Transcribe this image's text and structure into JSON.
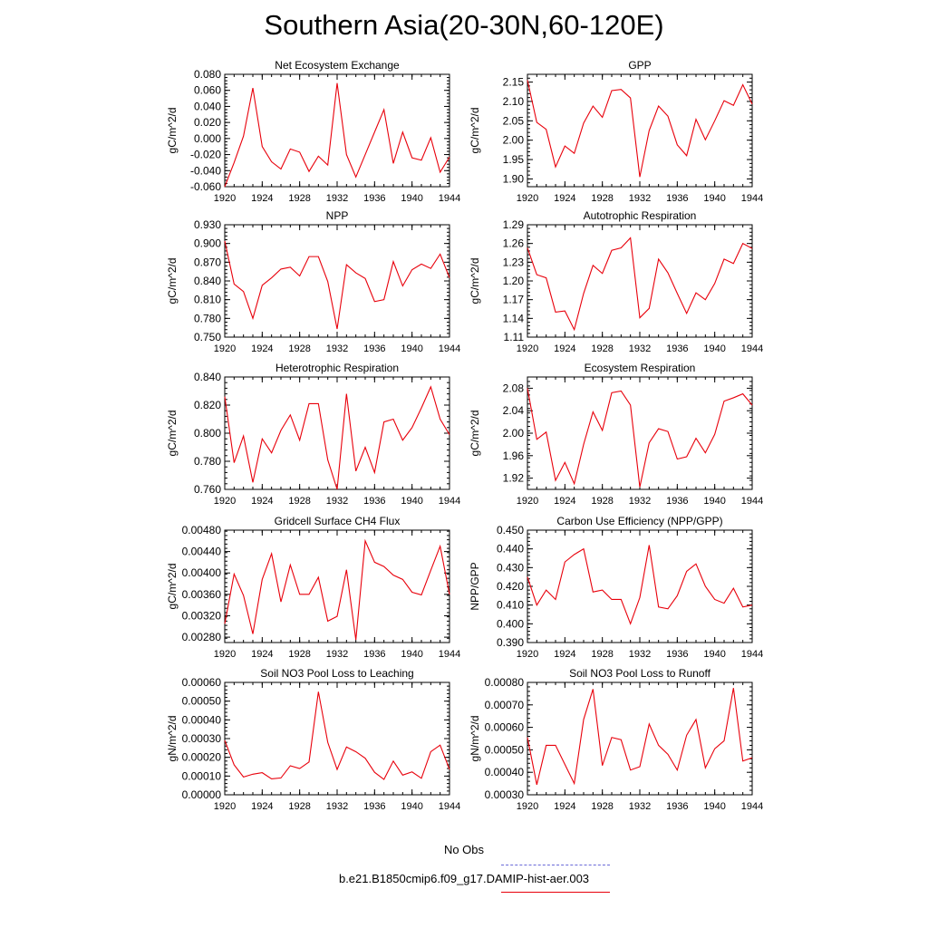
{
  "title": "Southern Asia(20-30N,60-120E)",
  "colors": {
    "model": "#e8000b",
    "obs": "#6a6ad8",
    "axis": "#000000"
  },
  "legend": {
    "obs_label": "No Obs",
    "model_label": "b.e21.B1850cmip6.f09_g17.DAMIP-hist-aer.003"
  },
  "chart_data": [
    {
      "type": "line",
      "title": "Net Ecosystem Exchange",
      "xlabel": "",
      "ylabel": "gC/m^2/d",
      "xlim": [
        1920,
        1944
      ],
      "ylim": [
        -0.06,
        0.08
      ],
      "xticks": [
        "1920",
        "1924",
        "1928",
        "1932",
        "1936",
        "1940",
        "1944"
      ],
      "yticks": [
        "-0.060",
        "-0.040",
        "-0.020",
        "0.000",
        "0.020",
        "0.040",
        "0.060",
        "0.080"
      ],
      "series": [
        {
          "x": [
            1920,
            1921,
            1922,
            1923,
            1924,
            1925,
            1926,
            1927,
            1928,
            1929,
            1930,
            1931,
            1932,
            1933,
            1934,
            1935,
            1936,
            1937,
            1938,
            1939,
            1940,
            1941,
            1942,
            1943,
            1944
          ],
          "values": [
            -0.06,
            -0.03,
            0.003,
            0.063,
            -0.01,
            -0.029,
            -0.038,
            -0.013,
            -0.017,
            -0.041,
            -0.022,
            -0.033,
            0.069,
            -0.02,
            -0.048,
            -0.02,
            0.008,
            0.036,
            -0.031,
            0.008,
            -0.024,
            -0.027,
            0.001,
            -0.042,
            -0.023
          ]
        }
      ]
    },
    {
      "type": "line",
      "title": "GPP",
      "xlabel": "",
      "ylabel": "gC/m^2/d",
      "xlim": [
        1920,
        1944
      ],
      "ylim": [
        1.88,
        2.17
      ],
      "xticks": [
        "1920",
        "1924",
        "1928",
        "1932",
        "1936",
        "1940",
        "1944"
      ],
      "yticks": [
        "1.90",
        "1.95",
        "2.00",
        "2.05",
        "2.10",
        "2.15"
      ],
      "series": [
        {
          "x": [
            1920,
            1921,
            1922,
            1923,
            1924,
            1925,
            1926,
            1927,
            1928,
            1929,
            1930,
            1931,
            1932,
            1933,
            1934,
            1935,
            1936,
            1937,
            1938,
            1939,
            1940,
            1941,
            1942,
            1943,
            1944
          ],
          "values": [
            2.155,
            2.046,
            2.028,
            1.931,
            1.985,
            1.966,
            2.044,
            2.088,
            2.059,
            2.128,
            2.131,
            2.109,
            1.905,
            2.025,
            2.088,
            2.062,
            1.988,
            1.96,
            2.054,
            2.001,
            2.05,
            2.102,
            2.09,
            2.143,
            2.093
          ]
        }
      ]
    },
    {
      "type": "line",
      "title": "NPP",
      "xlabel": "",
      "ylabel": "gC/m^2/d",
      "xlim": [
        1920,
        1944
      ],
      "ylim": [
        0.75,
        0.93
      ],
      "xticks": [
        "1920",
        "1924",
        "1928",
        "1932",
        "1936",
        "1940",
        "1944"
      ],
      "yticks": [
        "0.750",
        "0.780",
        "0.810",
        "0.840",
        "0.870",
        "0.900",
        "0.930"
      ],
      "series": [
        {
          "x": [
            1920,
            1921,
            1922,
            1923,
            1924,
            1925,
            1926,
            1927,
            1928,
            1929,
            1930,
            1931,
            1932,
            1933,
            1934,
            1935,
            1936,
            1937,
            1938,
            1939,
            1940,
            1941,
            1942,
            1943,
            1944
          ],
          "values": [
            0.904,
            0.835,
            0.823,
            0.78,
            0.833,
            0.845,
            0.859,
            0.862,
            0.848,
            0.879,
            0.879,
            0.839,
            0.763,
            0.866,
            0.853,
            0.844,
            0.807,
            0.81,
            0.871,
            0.832,
            0.858,
            0.867,
            0.86,
            0.883,
            0.845
          ]
        }
      ]
    },
    {
      "type": "line",
      "title": "Autotrophic Respiration",
      "xlabel": "",
      "ylabel": "gC/m^2/d",
      "xlim": [
        1920,
        1944
      ],
      "ylim": [
        1.11,
        1.29
      ],
      "xticks": [
        "1920",
        "1924",
        "1928",
        "1932",
        "1936",
        "1940",
        "1944"
      ],
      "yticks": [
        "1.11",
        "1.14",
        "1.17",
        "1.20",
        "1.23",
        "1.26",
        "1.29"
      ],
      "series": [
        {
          "x": [
            1920,
            1921,
            1922,
            1923,
            1924,
            1925,
            1926,
            1927,
            1928,
            1929,
            1930,
            1931,
            1932,
            1933,
            1934,
            1935,
            1936,
            1937,
            1938,
            1939,
            1940,
            1941,
            1942,
            1943,
            1944
          ],
          "values": [
            1.253,
            1.21,
            1.205,
            1.15,
            1.152,
            1.122,
            1.18,
            1.225,
            1.212,
            1.249,
            1.253,
            1.269,
            1.141,
            1.156,
            1.235,
            1.213,
            1.18,
            1.148,
            1.181,
            1.17,
            1.196,
            1.235,
            1.228,
            1.26,
            1.252
          ]
        }
      ]
    },
    {
      "type": "line",
      "title": "Heterotrophic Respiration",
      "xlabel": "",
      "ylabel": "gC/m^2/d",
      "xlim": [
        1920,
        1944
      ],
      "ylim": [
        0.76,
        0.84
      ],
      "xticks": [
        "1920",
        "1924",
        "1928",
        "1932",
        "1936",
        "1940",
        "1944"
      ],
      "yticks": [
        "0.760",
        "0.780",
        "0.800",
        "0.820",
        "0.840"
      ],
      "series": [
        {
          "x": [
            1920,
            1921,
            1922,
            1923,
            1924,
            1925,
            1926,
            1927,
            1928,
            1929,
            1930,
            1931,
            1932,
            1933,
            1934,
            1935,
            1936,
            1937,
            1938,
            1939,
            1940,
            1941,
            1942,
            1943,
            1944
          ],
          "values": [
            0.826,
            0.779,
            0.798,
            0.765,
            0.796,
            0.786,
            0.802,
            0.813,
            0.795,
            0.821,
            0.821,
            0.781,
            0.76,
            0.828,
            0.773,
            0.79,
            0.772,
            0.808,
            0.81,
            0.795,
            0.804,
            0.818,
            0.833,
            0.81,
            0.799
          ]
        }
      ]
    },
    {
      "type": "line",
      "title": "Ecosystem Respiration",
      "xlabel": "",
      "ylabel": "gC/m^2/d",
      "xlim": [
        1920,
        1944
      ],
      "ylim": [
        1.9,
        2.1
      ],
      "xticks": [
        "1920",
        "1924",
        "1928",
        "1932",
        "1936",
        "1940",
        "1944"
      ],
      "yticks": [
        "1.92",
        "1.96",
        "2.00",
        "2.04",
        "2.08"
      ],
      "series": [
        {
          "x": [
            1920,
            1921,
            1922,
            1923,
            1924,
            1925,
            1926,
            1927,
            1928,
            1929,
            1930,
            1931,
            1932,
            1933,
            1934,
            1935,
            1936,
            1937,
            1938,
            1939,
            1940,
            1941,
            1942,
            1943,
            1944
          ],
          "values": [
            2.08,
            1.989,
            2.002,
            1.916,
            1.948,
            1.91,
            1.98,
            2.038,
            2.005,
            2.072,
            2.075,
            2.05,
            1.904,
            1.983,
            2.008,
            2.003,
            1.954,
            1.958,
            1.991,
            1.965,
            1.998,
            2.057,
            2.063,
            2.07,
            2.05
          ]
        }
      ]
    },
    {
      "type": "line",
      "title": "Gridcell Surface CH4 Flux",
      "xlabel": "",
      "ylabel": "gC/m^2/d",
      "xlim": [
        1920,
        1944
      ],
      "ylim": [
        0.0027,
        0.0048
      ],
      "xticks": [
        "1920",
        "1924",
        "1928",
        "1932",
        "1936",
        "1940",
        "1944"
      ],
      "yticks": [
        "0.00280",
        "0.00320",
        "0.00360",
        "0.00400",
        "0.00440",
        "0.00480"
      ],
      "series": [
        {
          "x": [
            1920,
            1921,
            1922,
            1923,
            1924,
            1925,
            1926,
            1927,
            1928,
            1929,
            1930,
            1931,
            1932,
            1933,
            1934,
            1935,
            1936,
            1937,
            1938,
            1939,
            1940,
            1941,
            1942,
            1943,
            1944
          ],
          "values": [
            0.00305,
            0.00398,
            0.00358,
            0.00286,
            0.00388,
            0.00436,
            0.00346,
            0.00415,
            0.0036,
            0.0036,
            0.00392,
            0.0031,
            0.00319,
            0.00406,
            0.00275,
            0.0046,
            0.0042,
            0.00412,
            0.00396,
            0.00388,
            0.00364,
            0.00359,
            0.00405,
            0.0045,
            0.0036
          ]
        }
      ]
    },
    {
      "type": "line",
      "title": "Carbon Use Efficiency (NPP/GPP)",
      "xlabel": "",
      "ylabel": "NPP/GPP",
      "xlim": [
        1920,
        1944
      ],
      "ylim": [
        0.39,
        0.45
      ],
      "xticks": [
        "1920",
        "1924",
        "1928",
        "1932",
        "1936",
        "1940",
        "1944"
      ],
      "yticks": [
        "0.390",
        "0.400",
        "0.410",
        "0.420",
        "0.430",
        "0.440",
        "0.450"
      ],
      "series": [
        {
          "x": [
            1920,
            1921,
            1922,
            1923,
            1924,
            1925,
            1926,
            1927,
            1928,
            1929,
            1930,
            1931,
            1932,
            1933,
            1934,
            1935,
            1936,
            1937,
            1938,
            1939,
            1940,
            1941,
            1942,
            1943,
            1944
          ],
          "values": [
            0.425,
            0.41,
            0.418,
            0.413,
            0.433,
            0.437,
            0.44,
            0.417,
            0.418,
            0.413,
            0.413,
            0.4,
            0.414,
            0.442,
            0.409,
            0.408,
            0.415,
            0.428,
            0.432,
            0.42,
            0.413,
            0.411,
            0.419,
            0.409,
            0.41
          ]
        }
      ]
    },
    {
      "type": "line",
      "title": "Soil NO3 Pool Loss to Leaching",
      "xlabel": "",
      "ylabel": "gN/m^2/d",
      "xlim": [
        1920,
        1944
      ],
      "ylim": [
        0.0,
        0.0006
      ],
      "xticks": [
        "1920",
        "1924",
        "1928",
        "1932",
        "1936",
        "1940",
        "1944"
      ],
      "yticks": [
        "0.00000",
        "0.00010",
        "0.00020",
        "0.00030",
        "0.00040",
        "0.00050",
        "0.00060"
      ],
      "series": [
        {
          "x": [
            1920,
            1921,
            1922,
            1923,
            1924,
            1925,
            1926,
            1927,
            1928,
            1929,
            1930,
            1931,
            1932,
            1933,
            1934,
            1935,
            1936,
            1937,
            1938,
            1939,
            1940,
            1941,
            1942,
            1943,
            1944
          ],
          "values": [
            0.00029,
            0.00016,
            9.5e-05,
            0.00011,
            0.000118,
            8.5e-05,
            9e-05,
            0.000155,
            0.00014,
            0.000175,
            0.00055,
            0.00028,
            0.000135,
            0.000255,
            0.00023,
            0.000195,
            0.00012,
            8.2e-05,
            0.00018,
            0.000105,
            0.000122,
            8.8e-05,
            0.00023,
            0.000265,
            0.000135
          ]
        }
      ]
    },
    {
      "type": "line",
      "title": "Soil NO3 Pool Loss to Runoff",
      "xlabel": "",
      "ylabel": "gN/m^2/d",
      "xlim": [
        1920,
        1944
      ],
      "ylim": [
        0.0003,
        0.0008
      ],
      "xticks": [
        "1920",
        "1924",
        "1928",
        "1932",
        "1936",
        "1940",
        "1944"
      ],
      "yticks": [
        "0.00030",
        "0.00040",
        "0.00050",
        "0.00060",
        "0.00070",
        "0.00080"
      ],
      "series": [
        {
          "x": [
            1920,
            1921,
            1922,
            1923,
            1924,
            1925,
            1926,
            1927,
            1928,
            1929,
            1930,
            1931,
            1932,
            1933,
            1934,
            1935,
            1936,
            1937,
            1938,
            1939,
            1940,
            1941,
            1942,
            1943,
            1944
          ],
          "values": [
            0.000555,
            0.000345,
            0.00052,
            0.00052,
            0.000435,
            0.00035,
            0.000635,
            0.00077,
            0.00043,
            0.000555,
            0.000545,
            0.00041,
            0.000425,
            0.000615,
            0.00052,
            0.00048,
            0.00041,
            0.000565,
            0.000635,
            0.00042,
            0.000505,
            0.00054,
            0.000775,
            0.00045,
            0.000465
          ]
        }
      ]
    }
  ]
}
